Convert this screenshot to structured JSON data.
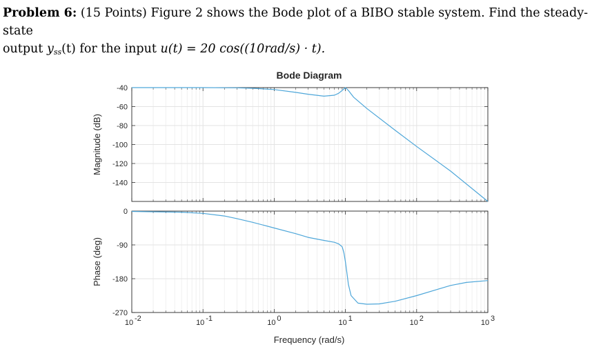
{
  "problem": {
    "heading": "Problem 6:",
    "points": "(15 Points)",
    "text_1": "Figure 2 shows the Bode plot of a BIBO stable system. Find the steady-state",
    "text_2": "output",
    "y_symbol": "y",
    "y_subscript": "ss",
    "text_3": "(t) for the input",
    "u_expr": "u(t) = 20 cos((10rad/s) · t)."
  },
  "chart_data": {
    "type": "line",
    "title": "Bode Diagram",
    "xlabel": "Frequency  (rad/s)",
    "x_scale": "log",
    "xlim": [
      0.01,
      1000
    ],
    "x_ticks": [
      {
        "value": 0.01,
        "base": "10",
        "exp": "-2"
      },
      {
        "value": 0.1,
        "base": "10",
        "exp": "-1"
      },
      {
        "value": 1,
        "base": "10",
        "exp": "0"
      },
      {
        "value": 10,
        "base": "10",
        "exp": "1"
      },
      {
        "value": 100,
        "base": "10",
        "exp": "2"
      },
      {
        "value": 1000,
        "base": "10",
        "exp": "3"
      }
    ],
    "line_color": "#4DA6D9",
    "grid": true,
    "panels": [
      {
        "name": "magnitude",
        "ylabel": "Magnitude (dB)",
        "ylim": [
          -160,
          -40
        ],
        "y_ticks": [
          {
            "value": -40,
            "label": "-40"
          },
          {
            "value": -60,
            "label": "-60"
          },
          {
            "value": -80,
            "label": "-80"
          },
          {
            "value": -100,
            "label": "-100"
          },
          {
            "value": -120,
            "label": "-120"
          },
          {
            "value": -140,
            "label": "-140"
          }
        ],
        "x": [
          0.01,
          0.1,
          0.3,
          0.5,
          1,
          2,
          3,
          5,
          7,
          8,
          9,
          10,
          11,
          13,
          20,
          50,
          100,
          300,
          1000
        ],
        "y": [
          -40,
          -40,
          -40.2,
          -40.7,
          -42,
          -45,
          -47,
          -49,
          -48,
          -46,
          -43,
          -40,
          -43,
          -50,
          -62,
          -85,
          -102,
          -128,
          -160
        ]
      },
      {
        "name": "phase",
        "ylabel": "Phase (deg)",
        "ylim": [
          -270,
          0
        ],
        "y_ticks": [
          {
            "value": 0,
            "label": "0"
          },
          {
            "value": -90,
            "label": "-90"
          },
          {
            "value": -180,
            "label": "-180"
          },
          {
            "value": -270,
            "label": "-270"
          }
        ],
        "x": [
          0.01,
          0.05,
          0.1,
          0.2,
          0.3,
          0.5,
          1,
          2,
          3,
          5,
          7,
          8,
          9,
          9.5,
          10,
          10.5,
          11,
          12,
          15,
          20,
          30,
          50,
          100,
          200,
          300,
          500,
          1000
        ],
        "y": [
          -1,
          -3,
          -6,
          -13,
          -20,
          -30,
          -45,
          -60,
          -70,
          -78,
          -83,
          -87,
          -95,
          -110,
          -135,
          -165,
          -195,
          -225,
          -245,
          -248,
          -247,
          -240,
          -225,
          -208,
          -198,
          -190,
          -185
        ]
      }
    ]
  }
}
